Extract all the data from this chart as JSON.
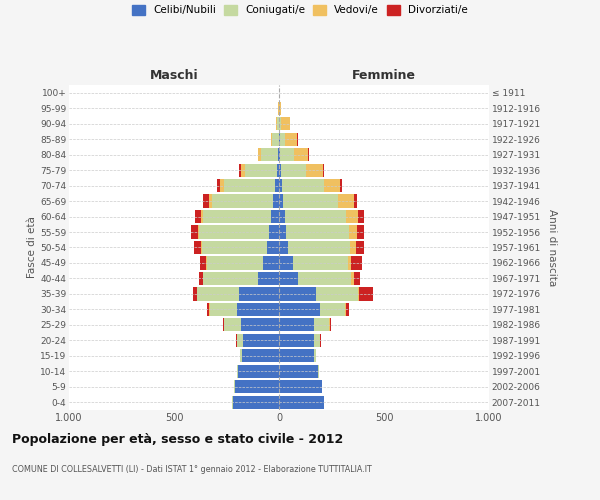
{
  "age_groups": [
    "0-4",
    "5-9",
    "10-14",
    "15-19",
    "20-24",
    "25-29",
    "30-34",
    "35-39",
    "40-44",
    "45-49",
    "50-54",
    "55-59",
    "60-64",
    "65-69",
    "70-74",
    "75-79",
    "80-84",
    "85-89",
    "90-94",
    "95-99",
    "100+"
  ],
  "birth_years": [
    "2007-2011",
    "2002-2006",
    "1997-2001",
    "1992-1996",
    "1987-1991",
    "1982-1986",
    "1977-1981",
    "1972-1976",
    "1967-1971",
    "1962-1966",
    "1957-1961",
    "1952-1956",
    "1947-1951",
    "1942-1946",
    "1937-1941",
    "1932-1936",
    "1927-1931",
    "1922-1926",
    "1917-1921",
    "1912-1916",
    "≤ 1911"
  ],
  "maschi": {
    "celibi": [
      220,
      210,
      195,
      175,
      170,
      180,
      200,
      190,
      100,
      75,
      55,
      50,
      40,
      30,
      20,
      10,
      5,
      2,
      0,
      0,
      0
    ],
    "coniugati": [
      2,
      3,
      5,
      10,
      30,
      80,
      130,
      200,
      260,
      270,
      310,
      330,
      320,
      290,
      240,
      150,
      80,
      30,
      10,
      2,
      0
    ],
    "vedovi": [
      0,
      0,
      0,
      0,
      0,
      2,
      2,
      2,
      2,
      3,
      5,
      5,
      10,
      15,
      20,
      20,
      15,
      8,
      5,
      2,
      0
    ],
    "divorziati": [
      0,
      0,
      0,
      0,
      3,
      5,
      10,
      18,
      20,
      30,
      35,
      35,
      30,
      25,
      15,
      10,
      2,
      0,
      0,
      0,
      0
    ]
  },
  "femmine": {
    "nubili": [
      215,
      205,
      185,
      165,
      165,
      165,
      195,
      175,
      90,
      65,
      45,
      35,
      30,
      20,
      12,
      8,
      5,
      3,
      2,
      0,
      0
    ],
    "coniugate": [
      1,
      2,
      5,
      10,
      30,
      75,
      120,
      200,
      255,
      265,
      295,
      300,
      290,
      260,
      200,
      120,
      65,
      25,
      8,
      2,
      0
    ],
    "vedove": [
      0,
      0,
      0,
      0,
      1,
      2,
      3,
      5,
      10,
      15,
      25,
      35,
      55,
      75,
      80,
      80,
      70,
      60,
      40,
      8,
      2
    ],
    "divorziate": [
      0,
      0,
      0,
      0,
      3,
      5,
      15,
      70,
      30,
      50,
      40,
      35,
      30,
      15,
      10,
      5,
      3,
      2,
      0,
      0,
      0
    ]
  },
  "colors": {
    "celibi": "#4472c4",
    "coniugati": "#c5d9a0",
    "vedovi": "#f0c060",
    "divorziati": "#cc2222"
  },
  "legend_labels": [
    "Celibi/Nubili",
    "Coniugati/e",
    "Vedovi/e",
    "Divorziati/e"
  ],
  "title": "Popolazione per età, sesso e stato civile - 2012",
  "subtitle": "COMUNE DI COLLESALVETTI (LI) - Dati ISTAT 1° gennaio 2012 - Elaborazione TUTTITALIA.IT",
  "xlabel_left": "Maschi",
  "xlabel_right": "Femmine",
  "ylabel_left": "Fasce di età",
  "ylabel_right": "Anni di nascita",
  "xlim": 1000,
  "bg_color": "#f5f5f5",
  "plot_bg": "#ffffff",
  "grid_color": "#cccccc"
}
